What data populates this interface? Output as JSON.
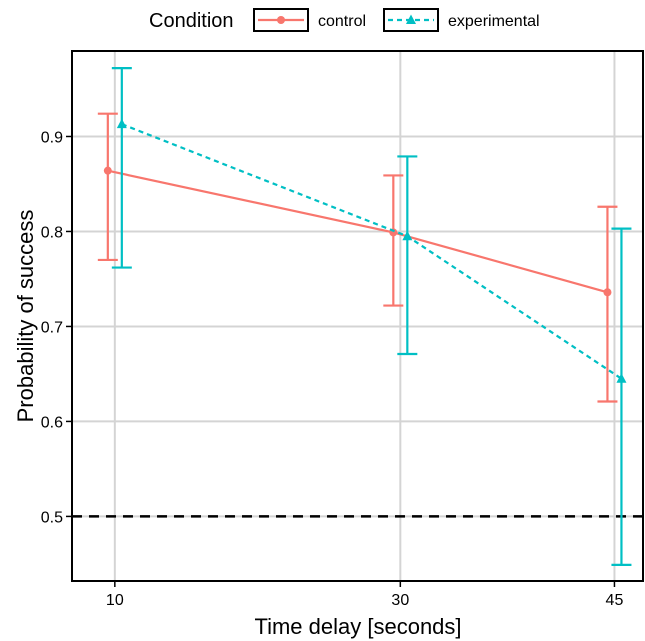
{
  "chart_data": {
    "type": "line",
    "title": "",
    "xlabel": "Time delay [seconds]",
    "ylabel": "Probability of success",
    "x": [
      10,
      30,
      45
    ],
    "x_tick_labels": [
      "10",
      "30",
      "45"
    ],
    "y_tick_labels": [
      "0.5",
      "0.6",
      "0.7",
      "0.8",
      "0.9"
    ],
    "xlim": [
      7,
      47
    ],
    "ylim": [
      0.432,
      0.99
    ],
    "grid": true,
    "reference_line": {
      "y": 0.5,
      "style": "dashed",
      "color": "#000000"
    },
    "legend": {
      "title": "Condition",
      "placement": "top",
      "entries": [
        "control",
        "experimental"
      ]
    },
    "series": [
      {
        "name": "control",
        "color": "#F8766D",
        "marker": "circle",
        "line_style": "solid",
        "values": [
          0.864,
          0.799,
          0.736
        ],
        "lower": [
          0.77,
          0.722,
          0.621
        ],
        "upper": [
          0.924,
          0.859,
          0.826
        ]
      },
      {
        "name": "experimental",
        "color": "#00BFC4",
        "marker": "triangle",
        "line_style": "dashed",
        "values": [
          0.913,
          0.795,
          0.645
        ],
        "lower": [
          0.762,
          0.671,
          0.449
        ],
        "upper": [
          0.972,
          0.879,
          0.803
        ]
      }
    ]
  }
}
